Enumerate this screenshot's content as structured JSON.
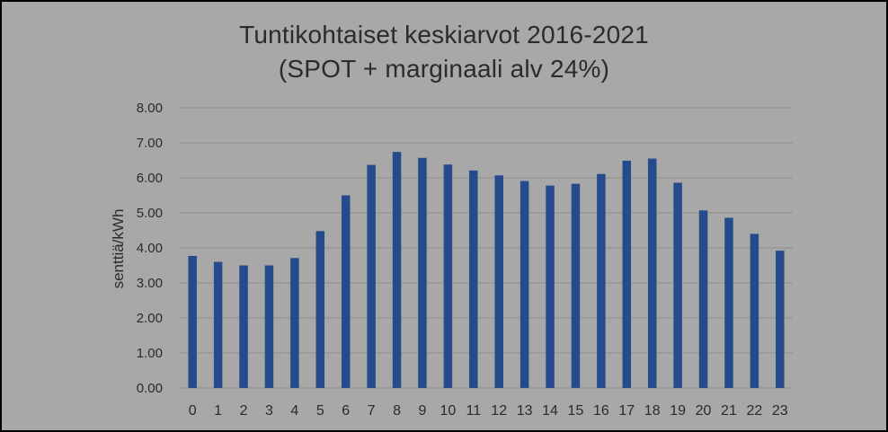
{
  "chart_data": {
    "type": "bar",
    "title": "Tuntikohtaiset keskiarvot 2016-2021",
    "subtitle": "(SPOT + marginaali alv 24%)",
    "ylabel": "senttiä/kWh",
    "xlabel": "",
    "ylim": [
      0,
      8
    ],
    "yticks": [
      "0.00",
      "1.00",
      "2.00",
      "3.00",
      "4.00",
      "5.00",
      "6.00",
      "7.00",
      "8.00"
    ],
    "grid": true,
    "categories": [
      "0",
      "1",
      "2",
      "3",
      "4",
      "5",
      "6",
      "7",
      "8",
      "9",
      "10",
      "11",
      "12",
      "13",
      "14",
      "15",
      "16",
      "17",
      "18",
      "19",
      "20",
      "21",
      "22",
      "23"
    ],
    "values": [
      3.77,
      3.6,
      3.5,
      3.5,
      3.71,
      4.48,
      5.5,
      6.37,
      6.74,
      6.57,
      6.38,
      6.21,
      6.07,
      5.91,
      5.78,
      5.83,
      6.11,
      6.49,
      6.55,
      5.86,
      5.07,
      4.86,
      4.4,
      3.92
    ],
    "bar_color": "#254b8c"
  }
}
